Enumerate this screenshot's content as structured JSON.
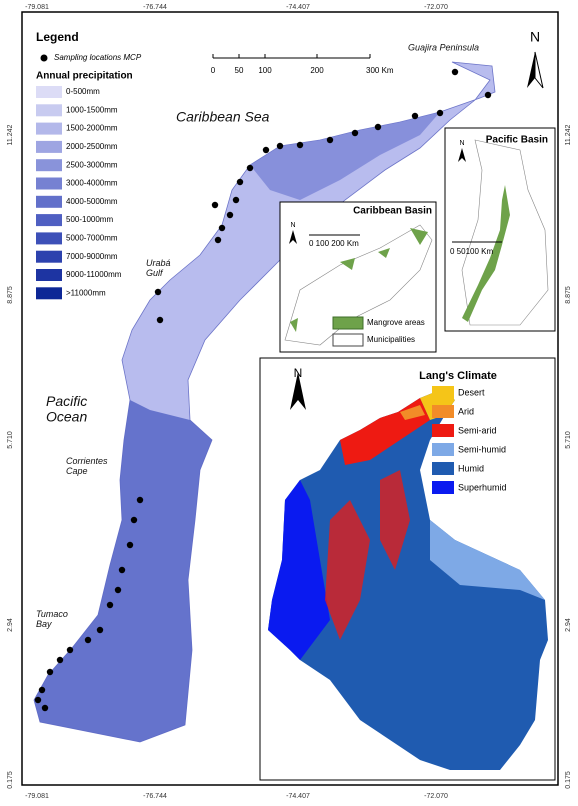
{
  "coordinates": {
    "top": [
      "-79.081",
      "-76.744",
      "-74.407",
      "-72.070"
    ],
    "bottom": [
      "-79.081",
      "-76.744",
      "-74.407",
      "-72.070"
    ],
    "left": [
      "11.242",
      "8.875",
      "5.710",
      "2.94",
      "0.175"
    ],
    "right": [
      "11.242",
      "8.875",
      "5.710",
      "2.94",
      "0.175"
    ]
  },
  "legend": {
    "title": "Legend",
    "sampling": "Sampling locations MCP",
    "precip_title": "Annual precipitation",
    "classes": [
      {
        "label": "0-500mm",
        "color": "#dcdcf6"
      },
      {
        "label": "1000-1500mm",
        "color": "#c8cbf0"
      },
      {
        "label": "1500-2000mm",
        "color": "#b3b8ea"
      },
      {
        "label": "2000-2500mm",
        "color": "#9ea5e2"
      },
      {
        "label": "2500-3000mm",
        "color": "#8993da"
      },
      {
        "label": "3000-4000mm",
        "color": "#7681d2"
      },
      {
        "label": "4000-5000mm",
        "color": "#6270ca"
      },
      {
        "label": "500-1000mm",
        "color": "#4f5fc2"
      },
      {
        "label": "5000-7000mm",
        "color": "#3d50b8"
      },
      {
        "label": "7000-9000mm",
        "color": "#2d42ae"
      },
      {
        "label": "9000-11000mm",
        "color": "#1d34a2"
      },
      {
        "label": ">11000mm",
        "color": "#0d2796"
      }
    ]
  },
  "scale": {
    "ticks": [
      "0",
      "50",
      "100",
      "200",
      "300 Km"
    ]
  },
  "places": {
    "guajira": "Guajira Peninsula",
    "caribbean_sea": "Caribbean Sea",
    "uraba": "Urabá\nGulf",
    "pacific_ocean": "Pacific\nOcean",
    "corrientes": "Corrientes\nCape",
    "tumaco": "Tumaco\nBay"
  },
  "north": "N",
  "pacific_inset": {
    "title": "Pacific Basin",
    "north": "N",
    "scale": "0  50100 Km"
  },
  "caribbean_inset": {
    "title": "Caribbean Basin",
    "north": "N",
    "scale": "0    100  200 Km",
    "legend": [
      "Mangrove areas",
      "Municipalities"
    ]
  },
  "climate": {
    "north": "N",
    "title": "Lang's Climate",
    "classes": [
      {
        "label": "Desert",
        "color": "#f5c518"
      },
      {
        "label": "Arid",
        "color": "#f28c28"
      },
      {
        "label": "Semi-arid",
        "color": "#ee1a12"
      },
      {
        "label": "Semi-humid",
        "color": "#7ea9e6"
      },
      {
        "label": "Humid",
        "color": "#1f5bb0"
      },
      {
        "label": "Superhumid",
        "color": "#0a1af0"
      }
    ]
  }
}
